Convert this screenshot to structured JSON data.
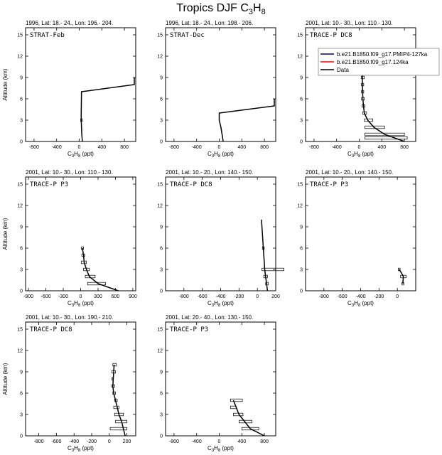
{
  "page": {
    "title_main": "Tropics DJF C",
    "title_sub": "3",
    "title_mid": "H",
    "title_sub2": "8"
  },
  "legend": [
    {
      "label": "b.e21.B1850.f09_g17.PMIP4-127ka",
      "color": "#00008b"
    },
    {
      "label": "b.e21.B1850.f09_g17.124ka",
      "color": "#ff0000"
    },
    {
      "label": "Data",
      "color": "#000000"
    }
  ],
  "chart_data": [
    {
      "type": "line",
      "header": "1996, Lat: 18.- 24., Lon: 196.- 204.",
      "label": "STRAT-Feb",
      "xlabel_main": "C",
      "xlabel_sub1": "3",
      "xlabel_mid": "H",
      "xlabel_sub2": "8",
      "xlabel_unit": " (ppt)",
      "ylabel": "Altitude (km)",
      "xlim": [
        -950,
        1000
      ],
      "ylim": [
        0,
        16
      ],
      "xticks": [
        -800,
        -400,
        0,
        400,
        800
      ],
      "yticks": [
        0,
        3,
        6,
        9,
        12,
        15
      ],
      "series": [
        {
          "x": [
            55,
            45,
            40,
            35,
            35,
            40,
            975,
            975
          ],
          "y": [
            0,
            1,
            2,
            3,
            4,
            7,
            8,
            9
          ]
        }
      ],
      "errorbars": [
        {
          "y": 3,
          "lo": 25,
          "hi": 55
        }
      ]
    },
    {
      "type": "line",
      "header": "1996, Lat: 18.- 24., Lon: 198.- 206.",
      "label": "STRAT-Dec",
      "xlabel_main": "C",
      "xlabel_sub1": "3",
      "xlabel_mid": "H",
      "xlabel_sub2": "8",
      "xlabel_unit": " (ppt)",
      "ylabel": "",
      "xlim": [
        -950,
        1000
      ],
      "ylim": [
        0,
        16
      ],
      "xticks": [
        -800,
        -400,
        0,
        400,
        800
      ],
      "yticks": [
        0,
        3,
        6,
        9,
        12,
        15
      ],
      "series": [
        {
          "x": [
            70,
            50,
            30,
            0,
            0,
            975,
            975
          ],
          "y": [
            0,
            1,
            2,
            3,
            4,
            5,
            6
          ]
        }
      ],
      "errorbars": []
    },
    {
      "type": "line",
      "header": "2001, Lat: 10.- 30., Lon: 110.- 130.",
      "label": "TRACE-P DC8",
      "xlabel_main": "C",
      "xlabel_sub1": "3",
      "xlabel_mid": "H",
      "xlabel_sub2": "8",
      "xlabel_unit": " (ppt)",
      "ylabel": "",
      "xlim": [
        -950,
        1000
      ],
      "ylim": [
        0,
        16
      ],
      "xticks": [
        -800,
        -400,
        0,
        400,
        800
      ],
      "yticks": [
        0,
        3,
        6,
        9,
        12,
        15
      ],
      "series": [
        {
          "x": [
            800,
            450,
            260,
            150,
            90,
            75,
            65,
            60,
            55,
            55,
            60
          ],
          "y": [
            0,
            1,
            2,
            3,
            4,
            5,
            6,
            7,
            8,
            9,
            10
          ]
        }
      ],
      "errorbars": [
        {
          "y": 0.5,
          "lo": 100,
          "hi": 850
        },
        {
          "y": 1,
          "lo": 100,
          "hi": 800
        },
        {
          "y": 2,
          "lo": 100,
          "hi": 450
        },
        {
          "y": 3,
          "lo": 90,
          "hi": 240
        },
        {
          "y": 4,
          "lo": 60,
          "hi": 130
        },
        {
          "y": 5,
          "lo": 50,
          "hi": 100
        },
        {
          "y": 6,
          "lo": 40,
          "hi": 90
        },
        {
          "y": 7,
          "lo": 40,
          "hi": 80
        },
        {
          "y": 8,
          "lo": 40,
          "hi": 80
        },
        {
          "y": 9,
          "lo": 35,
          "hi": 90
        },
        {
          "y": 10,
          "lo": 35,
          "hi": 95
        }
      ]
    },
    {
      "type": "line",
      "header": "2001, Lat: 10.- 30., Lon: 110.- 130.",
      "label": "TRACE-P P3",
      "xlabel_main": "C",
      "xlabel_sub1": "3",
      "xlabel_mid": "H",
      "xlabel_sub2": "8",
      "xlabel_unit": " (ppt)",
      "ylabel": "Altitude (km)",
      "xlim": [
        -950,
        950
      ],
      "ylim": [
        0,
        16
      ],
      "xticks": [
        -900,
        -600,
        -300,
        0,
        300,
        600,
        900
      ],
      "yticks": [
        0,
        3,
        6,
        9,
        12,
        15
      ],
      "series": [
        {
          "x": [
            650,
            300,
            150,
            100,
            60,
            50,
            30
          ],
          "y": [
            0,
            1,
            2,
            3,
            4,
            5,
            6
          ]
        }
      ],
      "errorbars": [
        {
          "y": 1,
          "lo": 120,
          "hi": 430
        },
        {
          "y": 2,
          "lo": 80,
          "hi": 250
        },
        {
          "y": 3,
          "lo": 50,
          "hi": 150
        },
        {
          "y": 4,
          "lo": 10,
          "hi": 100
        },
        {
          "y": 5,
          "lo": 20,
          "hi": 70
        },
        {
          "y": 6,
          "lo": 10,
          "hi": 50
        }
      ]
    },
    {
      "type": "line",
      "header": "2001, Lat: 10.- 20., Lon: 140.- 150.",
      "label": "TRACE-P DC8",
      "xlabel_main": "C",
      "xlabel_sub1": "3",
      "xlabel_mid": "H",
      "xlabel_sub2": "8",
      "xlabel_unit": " (ppt)",
      "ylabel": "",
      "xlim": [
        -1000,
        200
      ],
      "ylim": [
        0,
        16
      ],
      "xticks": [
        -800,
        -600,
        -400,
        -200,
        0,
        200
      ],
      "yticks": [
        0,
        3,
        6,
        9,
        12,
        15
      ],
      "series": [
        {
          "x": [
            110,
            100,
            90,
            80,
            75,
            70,
            65,
            60,
            55,
            50,
            45
          ],
          "y": [
            0,
            1,
            2,
            3,
            4,
            5,
            6,
            7,
            8,
            9,
            10
          ]
        }
      ],
      "errorbars": [
        {
          "y": 1,
          "lo": 90,
          "hi": 120
        },
        {
          "y": 2,
          "lo": 70,
          "hi": 110
        },
        {
          "y": 3,
          "lo": 50,
          "hi": 290
        },
        {
          "y": 6,
          "lo": 55,
          "hi": 75
        }
      ]
    },
    {
      "type": "line",
      "header": "2001, Lat: 10.- 20., Lon: 140.- 150.",
      "label": "TRACE-P P3",
      "xlabel_main": "C",
      "xlabel_sub1": "3",
      "xlabel_mid": "H",
      "xlabel_sub2": "8",
      "xlabel_unit": " (ppt)",
      "ylabel": "",
      "xlim": [
        -1000,
        200
      ],
      "ylim": [
        0,
        16
      ],
      "xticks": [
        -800,
        -600,
        -400,
        -200,
        0
      ],
      "yticks": [
        0,
        3,
        6,
        9,
        12,
        15
      ],
      "series": [
        {
          "x": [
            60,
            65,
            45,
            20
          ],
          "y": [
            1,
            2,
            2.5,
            3
          ]
        }
      ],
      "errorbars": [
        {
          "y": 1,
          "lo": 50,
          "hi": 70
        },
        {
          "y": 2,
          "lo": 35,
          "hi": 95
        },
        {
          "y": 3,
          "lo": 10,
          "hi": 30
        }
      ]
    },
    {
      "type": "line",
      "header": "2001, Lat: 10.- 30., Lon: 190.- 210.",
      "label": "TRACE-P DC8",
      "xlabel_main": "C",
      "xlabel_sub1": "3",
      "xlabel_mid": "H",
      "xlabel_sub2": "8",
      "xlabel_unit": " (ppt)",
      "ylabel": "Altitude (km)",
      "xlim": [
        -950,
        300
      ],
      "ylim": [
        0,
        16
      ],
      "xticks": [
        -800,
        -600,
        -400,
        -200,
        0,
        200
      ],
      "yticks": [
        0,
        3,
        6,
        9,
        12,
        15
      ],
      "series": [
        {
          "x": [
            180,
            160,
            140,
            110,
            90,
            70,
            50,
            40,
            45,
            50,
            55
          ],
          "y": [
            0,
            1,
            2,
            3,
            4,
            5,
            6,
            7,
            8,
            9,
            10
          ]
        }
      ],
      "errorbars": [
        {
          "y": 1,
          "lo": 10,
          "hi": 200
        },
        {
          "y": 2,
          "lo": 70,
          "hi": 200
        },
        {
          "y": 3,
          "lo": 60,
          "hi": 160
        },
        {
          "y": 4,
          "lo": 50,
          "hi": 110
        },
        {
          "y": 5,
          "lo": 60,
          "hi": 90
        },
        {
          "y": 6,
          "lo": 40,
          "hi": 70
        },
        {
          "y": 7,
          "lo": 30,
          "hi": 60
        },
        {
          "y": 8,
          "lo": 30,
          "hi": 40
        },
        {
          "y": 9,
          "lo": 30,
          "hi": 70
        },
        {
          "y": 10,
          "lo": 40,
          "hi": 80
        }
      ]
    },
    {
      "type": "line",
      "header": "2001, Lat: 20.- 40., Lon: 130.- 150.",
      "label": "TRACE-P P3",
      "xlabel_main": "C",
      "xlabel_sub1": "3",
      "xlabel_mid": "H",
      "xlabel_sub2": "8",
      "xlabel_unit": " (ppt)",
      "ylabel": "",
      "xlim": [
        -950,
        1000
      ],
      "ylim": [
        0,
        16
      ],
      "xticks": [
        -800,
        -400,
        0,
        400,
        800
      ],
      "yticks": [
        0,
        3,
        6,
        9,
        12,
        15
      ],
      "series": [
        {
          "x": [
            800,
            550,
            450,
            350,
            300,
            250
          ],
          "y": [
            0,
            1,
            2,
            3,
            4,
            5
          ]
        }
      ],
      "errorbars": [
        {
          "y": 1,
          "lo": 400,
          "hi": 700
        },
        {
          "y": 2,
          "lo": 350,
          "hi": 580
        },
        {
          "y": 3,
          "lo": 250,
          "hi": 420
        },
        {
          "y": 4,
          "lo": 200,
          "hi": 300
        },
        {
          "y": 5,
          "lo": 200,
          "hi": 410
        }
      ]
    }
  ]
}
